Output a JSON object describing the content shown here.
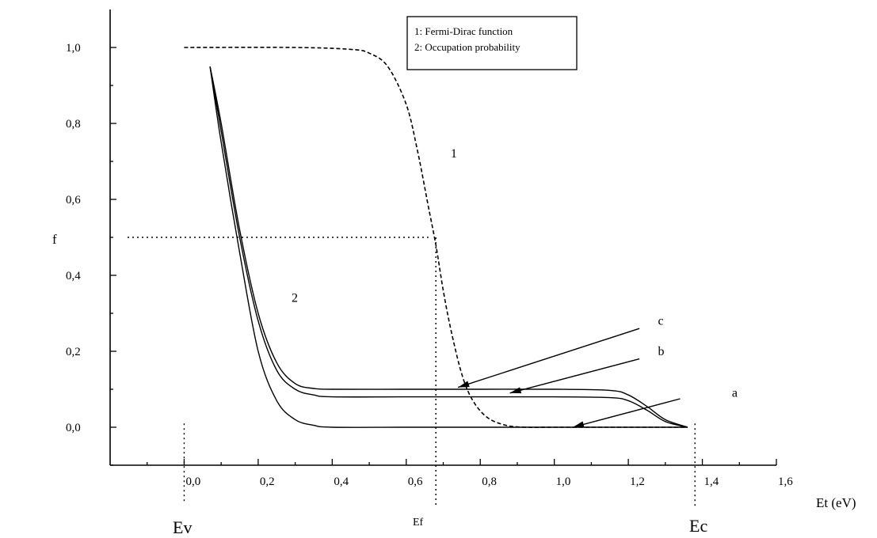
{
  "chart_data": {
    "type": "line",
    "title": "",
    "xlabel": "Et (eV)",
    "ylabel": "f",
    "xlim": [
      -0.2,
      1.6
    ],
    "ylim": [
      -0.1,
      1.1
    ],
    "x_ticks": [
      "0,0",
      "0,2",
      "0,4",
      "0,6",
      "0,8",
      "1,0",
      "1,2",
      "1,4",
      "1,6"
    ],
    "y_ticks": [
      "0,0",
      "0,2",
      "0,4",
      "0,6",
      "0,8",
      "1,0"
    ],
    "legend": [
      "1: Fermi-Dirac function",
      "2: Occupation probability"
    ],
    "legend_position": "top-right",
    "grid": false,
    "series": [
      {
        "name": "1",
        "style": "dashed",
        "x": [
          0.0,
          0.3,
          0.45,
          0.5,
          0.55,
          0.6,
          0.63,
          0.66,
          0.68,
          0.7,
          0.72,
          0.75,
          0.78,
          0.82,
          0.87,
          0.92,
          1.0,
          1.2,
          1.36
        ],
        "y": [
          1.0,
          1.0,
          0.995,
          0.985,
          0.95,
          0.85,
          0.73,
          0.58,
          0.48,
          0.36,
          0.26,
          0.14,
          0.07,
          0.025,
          0.005,
          0.0,
          0.0,
          0.0,
          0.0
        ]
      },
      {
        "name": "a",
        "x": [
          0.07,
          0.1,
          0.15,
          0.2,
          0.25,
          0.3,
          0.35,
          0.4,
          0.6,
          0.8,
          1.0,
          1.2,
          1.36
        ],
        "y": [
          0.95,
          0.75,
          0.46,
          0.2,
          0.07,
          0.02,
          0.005,
          0.0,
          0.0,
          0.0,
          0.0,
          0.0,
          0.0
        ]
      },
      {
        "name": "b",
        "x": [
          0.07,
          0.1,
          0.15,
          0.2,
          0.25,
          0.3,
          0.35,
          0.4,
          0.6,
          0.8,
          1.0,
          1.15,
          1.2,
          1.25,
          1.3,
          1.36
        ],
        "y": [
          0.95,
          0.78,
          0.5,
          0.28,
          0.15,
          0.1,
          0.085,
          0.08,
          0.08,
          0.08,
          0.08,
          0.078,
          0.07,
          0.045,
          0.015,
          0.0
        ]
      },
      {
        "name": "c",
        "x": [
          0.07,
          0.1,
          0.15,
          0.2,
          0.25,
          0.3,
          0.35,
          0.4,
          0.6,
          0.8,
          1.0,
          1.15,
          1.2,
          1.25,
          1.3,
          1.36
        ],
        "y": [
          0.95,
          0.8,
          0.52,
          0.3,
          0.17,
          0.115,
          0.102,
          0.1,
          0.1,
          0.1,
          0.1,
          0.097,
          0.085,
          0.055,
          0.02,
          0.0
        ]
      }
    ],
    "reference_lines": {
      "f_half": {
        "y": 0.5,
        "x_end": 0.66
      },
      "Ef": {
        "x": 0.68
      },
      "Ev": {
        "x": 0.0
      },
      "Ec": {
        "x": 1.38
      }
    },
    "annotations": [
      {
        "text": "1",
        "x": 0.72,
        "y": 0.71
      },
      {
        "text": "2",
        "x": 0.29,
        "y": 0.33
      },
      {
        "text": "c",
        "x": 1.28,
        "y": 0.27,
        "arrow_from": [
          1.23,
          0.26
        ],
        "arrow_to": [
          0.74,
          0.105
        ]
      },
      {
        "text": "b",
        "x": 1.28,
        "y": 0.19,
        "arrow_from": [
          1.23,
          0.18
        ],
        "arrow_to": [
          0.88,
          0.09
        ]
      },
      {
        "text": "a",
        "x": 1.48,
        "y": 0.08,
        "arrow_from": [
          1.34,
          0.075
        ],
        "arrow_to": [
          1.05,
          0.0
        ]
      }
    ],
    "bottom_labels": {
      "Ev": "Ev",
      "Ef": "Ef",
      "Ec": "Ec"
    }
  }
}
